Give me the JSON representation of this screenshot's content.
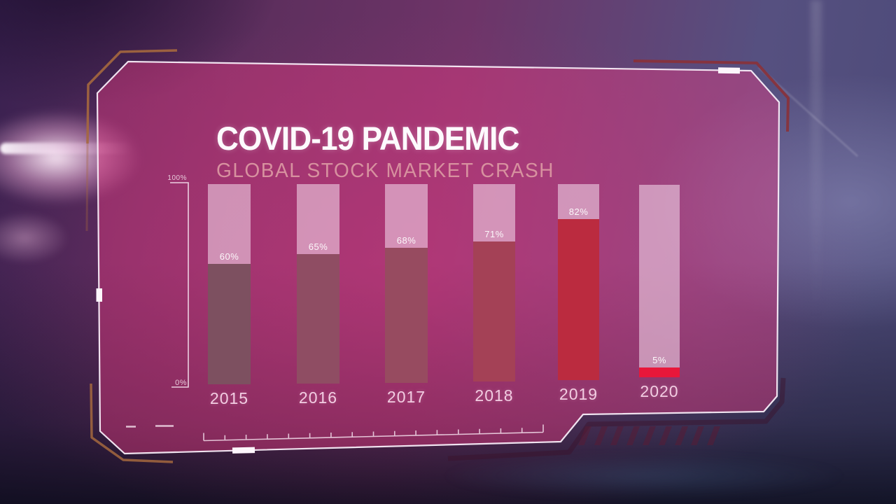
{
  "header": {
    "title": "COVID-19 PANDEMIC",
    "subtitle": "GLOBAL STOCK MARKET CRASH"
  },
  "chart_data": {
    "type": "bar",
    "title": "COVID-19 PANDEMIC",
    "subtitle": "GLOBAL STOCK MARKET CRASH",
    "categories": [
      "2015",
      "2016",
      "2017",
      "2018",
      "2019",
      "2020"
    ],
    "values": [
      60,
      65,
      68,
      71,
      82,
      5
    ],
    "value_labels": [
      "60%",
      "65%",
      "68%",
      "71%",
      "82%",
      "5%"
    ],
    "xlabel": "",
    "ylabel": "",
    "ylim": [
      0,
      100
    ],
    "y_axis_top_label": "100%",
    "y_axis_bottom_label": "0%",
    "grid": false,
    "legend": false,
    "bar_bg_color": "rgba(246,222,238,0.55)",
    "bar_colors": [
      "#7d5060",
      "#8f4d63",
      "#974b60",
      "#a44156",
      "#bb2b3f",
      "#e8173a"
    ]
  },
  "colors": {
    "frame_line": "#f8edf8",
    "accent_orange": "#a5683e",
    "accent_red": "#8a3138",
    "panel_tint": "rgba(235,60,130,0.42)",
    "title_color": "#fdfafd",
    "subtitle_color": "#d7919f"
  }
}
